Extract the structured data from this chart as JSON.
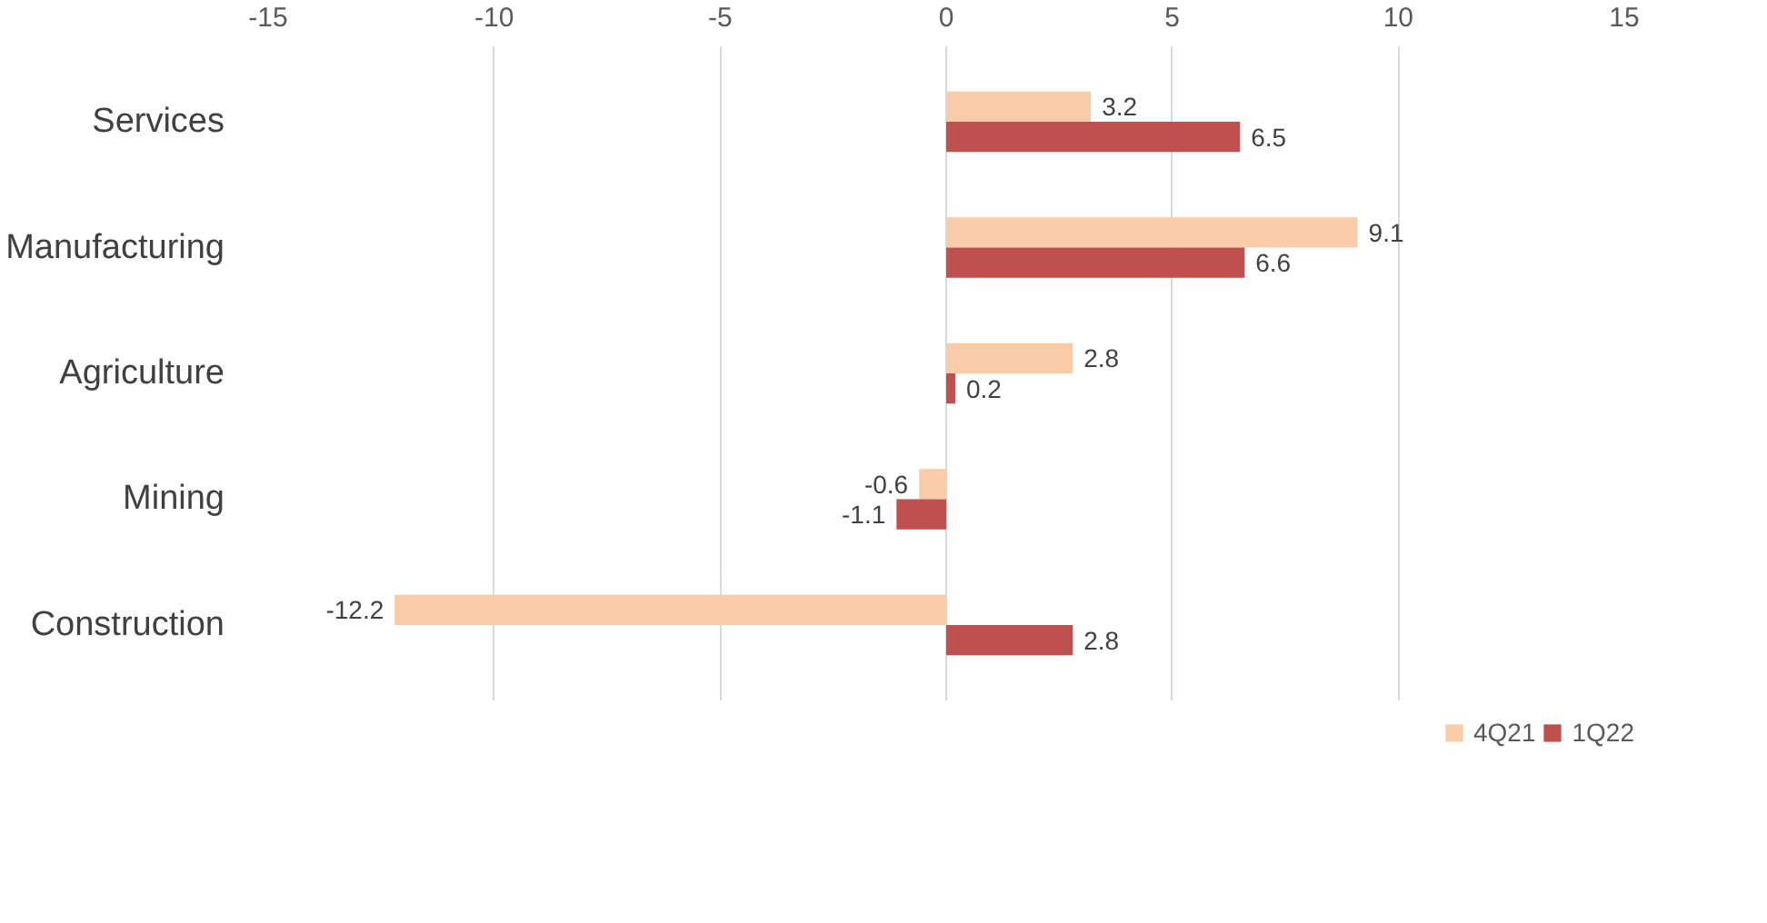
{
  "chart_data": {
    "type": "bar",
    "orientation": "horizontal",
    "categories": [
      "Services",
      "Manufacturing",
      "Agriculture",
      "Mining",
      "Construction"
    ],
    "series": [
      {
        "name": "4Q21",
        "color": "#f9cba6",
        "values": [
          3.2,
          9.1,
          2.8,
          -0.6,
          -12.2
        ]
      },
      {
        "name": "1Q22",
        "color": "#c0504d",
        "values": [
          6.5,
          6.6,
          0.2,
          -1.1,
          2.8
        ]
      }
    ],
    "xlim": [
      -15,
      15
    ],
    "xticks": [
      -15,
      -10,
      -5,
      0,
      5,
      10,
      15
    ],
    "grid": "x",
    "legend": "bottom",
    "data_labels": true
  }
}
